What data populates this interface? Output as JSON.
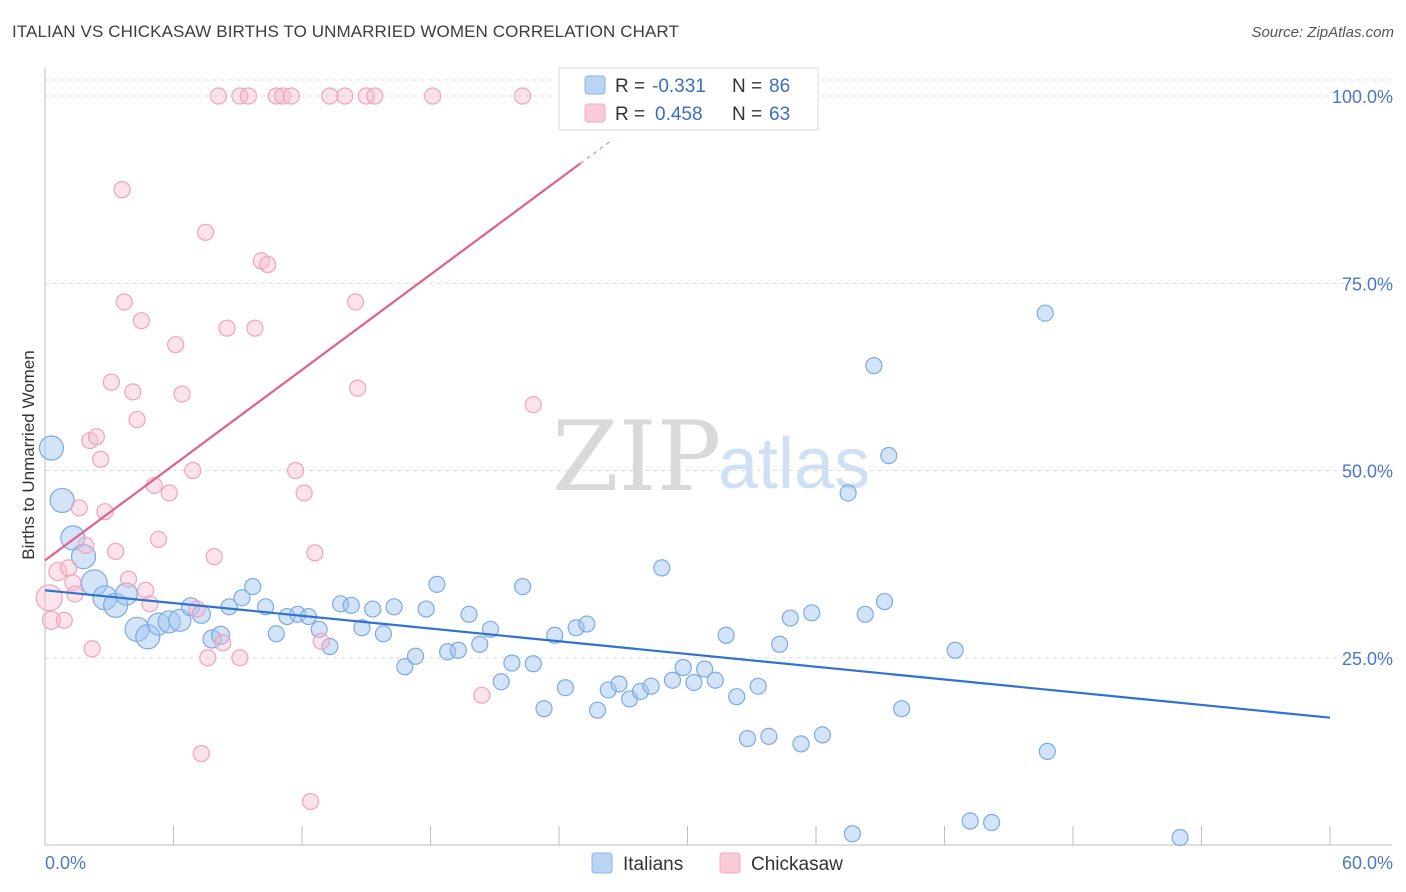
{
  "title": "ITALIAN VS CHICKASAW BIRTHS TO UNMARRIED WOMEN CORRELATION CHART",
  "source": "Source: ZipAtlas.com",
  "watermark": {
    "zip": "ZIP",
    "atlas": "atlas"
  },
  "legend": [
    {
      "r_label": "R =",
      "r_value": "-0.331",
      "n_label": "N =",
      "n_value": "86"
    },
    {
      "r_label": "R =",
      "r_value": "0.458",
      "n_label": "N =",
      "n_value": "63"
    }
  ],
  "chart_data": {
    "type": "scatter",
    "title": "ITALIAN VS CHICKASAW BIRTHS TO UNMARRIED WOMEN CORRELATION CHART",
    "xlabel": "",
    "ylabel": "Births to Unmarried Women",
    "xlim": [
      0,
      60
    ],
    "ylim": [
      0,
      100
    ],
    "x_tick_labels": [
      "0.0%",
      "60.0%"
    ],
    "y_ticks": [
      25,
      50,
      75,
      100
    ],
    "y_tick_labels": [
      "25.0%",
      "50.0%",
      "75.0%",
      "100.0%"
    ],
    "grid": true,
    "legend_position": "top-center",
    "colors": {
      "italians": "#8ab4e8",
      "italians_line": "#2f72cf",
      "chickasaw": "#f4a9c0",
      "chickasaw_line": "#e0608a"
    },
    "series": [
      {
        "name": "Italians",
        "trendline": {
          "x": [
            0,
            60
          ],
          "y": [
            34.0,
            17.0
          ]
        },
        "points": [
          [
            0.3,
            53.0,
            12
          ],
          [
            0.8,
            46.0,
            12
          ],
          [
            1.3,
            41.0,
            12
          ],
          [
            1.8,
            38.5,
            12
          ],
          [
            2.3,
            35.0,
            13
          ],
          [
            2.8,
            33.0,
            12
          ],
          [
            3.3,
            32.0,
            12
          ],
          [
            3.8,
            33.5,
            11
          ],
          [
            4.3,
            28.8,
            12
          ],
          [
            4.8,
            27.8,
            12
          ],
          [
            5.3,
            29.5,
            11
          ],
          [
            5.8,
            29.8,
            11
          ],
          [
            6.3,
            30.0,
            11
          ],
          [
            6.8,
            31.8,
            9
          ],
          [
            7.3,
            30.8,
            9
          ],
          [
            7.8,
            27.5,
            9
          ],
          [
            8.2,
            28.0,
            9
          ],
          [
            8.6,
            31.8,
            8
          ],
          [
            9.2,
            33.0,
            8
          ],
          [
            9.7,
            34.5,
            8
          ],
          [
            10.3,
            31.8,
            8
          ],
          [
            10.8,
            28.2,
            8
          ],
          [
            11.3,
            30.5,
            8
          ],
          [
            11.8,
            30.8,
            8
          ],
          [
            12.3,
            30.5,
            8
          ],
          [
            12.8,
            28.8,
            8
          ],
          [
            13.3,
            26.5,
            8
          ],
          [
            13.8,
            32.2,
            8
          ],
          [
            14.3,
            32.0,
            8
          ],
          [
            14.8,
            29.0,
            8
          ],
          [
            15.3,
            31.5,
            8
          ],
          [
            15.8,
            28.2,
            8
          ],
          [
            16.3,
            31.8,
            8
          ],
          [
            16.8,
            23.8,
            8
          ],
          [
            17.3,
            25.2,
            8
          ],
          [
            17.8,
            31.5,
            8
          ],
          [
            18.3,
            34.8,
            8
          ],
          [
            18.8,
            25.8,
            8
          ],
          [
            19.3,
            26.0,
            8
          ],
          [
            19.8,
            30.8,
            8
          ],
          [
            20.3,
            26.8,
            8
          ],
          [
            20.8,
            28.8,
            8
          ],
          [
            21.3,
            21.8,
            8
          ],
          [
            21.8,
            24.3,
            8
          ],
          [
            22.3,
            34.5,
            8
          ],
          [
            22.8,
            24.2,
            8
          ],
          [
            23.3,
            18.2,
            8
          ],
          [
            23.8,
            28.0,
            8
          ],
          [
            24.3,
            21.0,
            8
          ],
          [
            24.8,
            29.0,
            8
          ],
          [
            25.3,
            29.5,
            8
          ],
          [
            25.8,
            18.0,
            8
          ],
          [
            26.3,
            20.7,
            8
          ],
          [
            26.8,
            21.5,
            8
          ],
          [
            27.3,
            19.5,
            8
          ],
          [
            27.8,
            20.5,
            8
          ],
          [
            28.3,
            21.2,
            8
          ],
          [
            28.8,
            37.0,
            8
          ],
          [
            29.3,
            22.0,
            8
          ],
          [
            29.8,
            23.7,
            8
          ],
          [
            30.3,
            21.7,
            8
          ],
          [
            30.8,
            23.5,
            8
          ],
          [
            31.3,
            22.0,
            8
          ],
          [
            31.8,
            28.0,
            8
          ],
          [
            32.3,
            19.8,
            8
          ],
          [
            32.8,
            14.2,
            8
          ],
          [
            33.3,
            21.2,
            8
          ],
          [
            33.8,
            14.5,
            8
          ],
          [
            34.3,
            26.8,
            8
          ],
          [
            34.8,
            30.3,
            8
          ],
          [
            35.3,
            13.5,
            8
          ],
          [
            35.8,
            31.0,
            8
          ],
          [
            36.3,
            14.7,
            8
          ],
          [
            37.5,
            47.0,
            8
          ],
          [
            37.7,
            1.5,
            8
          ],
          [
            38.3,
            30.8,
            8
          ],
          [
            38.7,
            64.0,
            8
          ],
          [
            39.2,
            32.5,
            8
          ],
          [
            39.4,
            52.0,
            8
          ],
          [
            40.0,
            18.2,
            8
          ],
          [
            42.5,
            26.0,
            8
          ],
          [
            43.2,
            3.2,
            8
          ],
          [
            44.2,
            3.0,
            8
          ],
          [
            46.7,
            71.0,
            8
          ],
          [
            46.8,
            12.5,
            8
          ],
          [
            53.0,
            1.0,
            8
          ]
        ]
      },
      {
        "name": "Chickasaw",
        "trendline": {
          "x": [
            0,
            25
          ],
          "y": [
            38.0,
            91.0
          ]
        },
        "points": [
          [
            0.2,
            33.0,
            13
          ],
          [
            0.3,
            30.0,
            9
          ],
          [
            0.6,
            36.5,
            9
          ],
          [
            0.9,
            30.0,
            8
          ],
          [
            1.1,
            37.0,
            8
          ],
          [
            1.3,
            35.0,
            8
          ],
          [
            1.4,
            33.5,
            8
          ],
          [
            1.6,
            45.0,
            8
          ],
          [
            1.9,
            40.0,
            8
          ],
          [
            2.1,
            54.0,
            8
          ],
          [
            2.2,
            26.2,
            8
          ],
          [
            2.4,
            54.5,
            8
          ],
          [
            2.6,
            51.5,
            8
          ],
          [
            2.8,
            44.5,
            8
          ],
          [
            3.1,
            61.8,
            8
          ],
          [
            3.3,
            39.2,
            8
          ],
          [
            3.6,
            87.5,
            8
          ],
          [
            3.7,
            72.5,
            8
          ],
          [
            3.9,
            35.5,
            8
          ],
          [
            4.1,
            60.5,
            8
          ],
          [
            4.3,
            56.8,
            8
          ],
          [
            4.5,
            70.0,
            8
          ],
          [
            4.7,
            34.0,
            8
          ],
          [
            4.9,
            32.2,
            8
          ],
          [
            5.1,
            48.0,
            8
          ],
          [
            5.3,
            40.8,
            8
          ],
          [
            5.8,
            47.0,
            8
          ],
          [
            6.1,
            66.8,
            8
          ],
          [
            6.4,
            60.2,
            8
          ],
          [
            6.9,
            50.0,
            8
          ],
          [
            7.1,
            31.5,
            8
          ],
          [
            7.3,
            12.2,
            8
          ],
          [
            7.5,
            81.8,
            8
          ],
          [
            7.6,
            25.0,
            8
          ],
          [
            7.9,
            38.5,
            8
          ],
          [
            8.1,
            100.0,
            8
          ],
          [
            8.3,
            27.0,
            8
          ],
          [
            8.5,
            69.0,
            8
          ],
          [
            9.1,
            100.0,
            8
          ],
          [
            9.1,
            25.0,
            8
          ],
          [
            9.5,
            100.0,
            8
          ],
          [
            9.8,
            69.0,
            8
          ],
          [
            10.1,
            78.0,
            8
          ],
          [
            10.4,
            77.5,
            8
          ],
          [
            10.8,
            100.0,
            8
          ],
          [
            11.1,
            100.0,
            8
          ],
          [
            11.5,
            100.0,
            8
          ],
          [
            11.7,
            50.0,
            8
          ],
          [
            12.1,
            47.0,
            8
          ],
          [
            12.4,
            5.8,
            8
          ],
          [
            12.6,
            39.0,
            8
          ],
          [
            12.9,
            27.2,
            8
          ],
          [
            13.3,
            100.0,
            8
          ],
          [
            14.0,
            100.0,
            8
          ],
          [
            14.5,
            72.5,
            8
          ],
          [
            14.6,
            61.0,
            8
          ],
          [
            15.0,
            100.0,
            8
          ],
          [
            15.4,
            100.0,
            8
          ],
          [
            18.1,
            100.0,
            8
          ],
          [
            20.4,
            20.0,
            8
          ],
          [
            22.3,
            100.0,
            8
          ],
          [
            22.8,
            58.8,
            8
          ],
          [
            24.6,
            100.0,
            8
          ]
        ]
      }
    ]
  }
}
